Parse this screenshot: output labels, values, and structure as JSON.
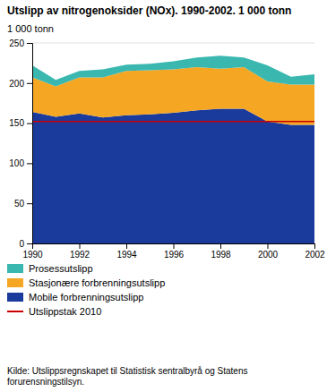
{
  "chart_data": {
    "type": "area",
    "stacked": true,
    "title": "Utslipp av nitrogenoksider (NOx). 1990-2002. 1 000 tonn",
    "y_label": "1 000 tonn",
    "x": [
      1990,
      1991,
      1992,
      1993,
      1994,
      1995,
      1996,
      1997,
      1998,
      1999,
      2000,
      2001,
      2002
    ],
    "series": [
      {
        "name": "Mobile forbrenningsutslipp",
        "color": "#1a3a9c",
        "values": [
          164,
          158,
          162,
          157,
          160,
          161,
          163,
          166,
          168,
          168,
          152,
          148,
          148
        ]
      },
      {
        "name": "Stasjonære forbrenningsutslipp",
        "color": "#f5a623",
        "values": [
          43,
          38,
          45,
          50,
          55,
          55,
          54,
          54,
          50,
          52,
          50,
          50,
          50
        ]
      },
      {
        "name": "Prosessutslipp",
        "color": "#3ab8b0",
        "values": [
          15,
          8,
          8,
          10,
          8,
          8,
          10,
          12,
          16,
          12,
          20,
          10,
          13
        ]
      }
    ],
    "reference_lines": [
      {
        "name": "Utslippstak 2010",
        "value": 152,
        "color": "#cc0000"
      }
    ],
    "xlim": [
      1990,
      2002
    ],
    "xticks": [
      1990,
      1992,
      1994,
      1996,
      1998,
      2000,
      2002
    ],
    "ylim": [
      0,
      250
    ],
    "yticks": [
      0,
      50,
      100,
      150,
      200,
      250
    ],
    "grid": true,
    "legend": "bottom",
    "source": "Kilde: Utslippsregnskapet til Statistisk sentralbyrå og Statens\nforurensningstilsyn."
  }
}
